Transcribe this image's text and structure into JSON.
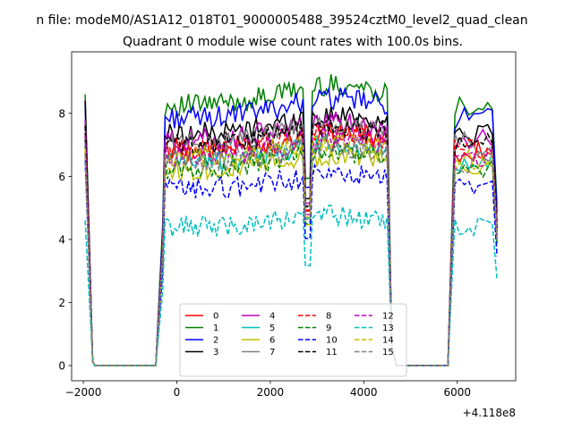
{
  "suptitle": "n file: modeM0/AS1A12_018T01_9000005488_39524cztM0_level2_quad_clean",
  "chart_data": {
    "type": "line",
    "title": "Quadrant 0 module wise count rates with 100.0s bins.",
    "xlabel": "",
    "ylabel": "",
    "x_offset_label": "+4.118e8",
    "xlim": [
      -2250,
      7250
    ],
    "ylim": [
      -0.48,
      9.95
    ],
    "xticks": [
      -2000,
      0,
      2000,
      4000,
      6000
    ],
    "xtick_labels": [
      "−2000",
      "0",
      "2000",
      "4000",
      "6000"
    ],
    "yticks": [
      0,
      2,
      4,
      6,
      8
    ],
    "yticks_labels": [
      "0",
      "2",
      "4",
      "6",
      "8"
    ],
    "grid": false,
    "legend": {
      "location": "bottom-center",
      "ncol": 4
    },
    "series": [
      {
        "name": "0",
        "color": "#ff0000",
        "style": "solid",
        "level": 6.8,
        "start": 8.4,
        "scale": 1.0
      },
      {
        "name": "1",
        "color": "#008000",
        "style": "solid",
        "level": 8.25,
        "start": 8.6,
        "scale": 1.0
      },
      {
        "name": "2",
        "color": "#0000ff",
        "style": "solid",
        "level": 7.85,
        "start": 8.3,
        "scale": 1.0
      },
      {
        "name": "3",
        "color": "#000000",
        "style": "solid",
        "level": 7.35,
        "start": 8.4,
        "scale": 1.0
      },
      {
        "name": "4",
        "color": "#bf00bf",
        "style": "solid",
        "level": 7.15,
        "start": 7.8,
        "scale": 1.0
      },
      {
        "name": "5",
        "color": "#00bfbf",
        "style": "solid",
        "level": 6.5,
        "start": 7.0,
        "scale": 1.0
      },
      {
        "name": "6",
        "color": "#bfbf00",
        "style": "solid",
        "level": 6.2,
        "start": 6.8,
        "scale": 1.0
      },
      {
        "name": "7",
        "color": "#808080",
        "style": "solid",
        "level": 7.05,
        "start": 7.4,
        "scale": 1.0
      },
      {
        "name": "8",
        "color": "#ff0000",
        "style": "dashed",
        "level": 6.85,
        "start": 7.6,
        "scale": 1.0
      },
      {
        "name": "9",
        "color": "#008000",
        "style": "dashed",
        "level": 6.25,
        "start": 7.2,
        "scale": 1.0
      },
      {
        "name": "10",
        "color": "#0000ff",
        "style": "dashed",
        "level": 5.6,
        "start": 6.5,
        "scale": 1.0
      },
      {
        "name": "11",
        "color": "#000000",
        "style": "dashed",
        "level": 7.0,
        "start": 7.6,
        "scale": 1.0
      },
      {
        "name": "12",
        "color": "#bf00bf",
        "style": "dashed",
        "level": 6.65,
        "start": 7.3,
        "scale": 1.0
      },
      {
        "name": "13",
        "color": "#00bfbf",
        "style": "dashed",
        "level": 4.4,
        "start": 4.6,
        "scale": 1.0
      },
      {
        "name": "14",
        "color": "#bfbf00",
        "style": "dashed",
        "level": 6.55,
        "start": 6.9,
        "scale": 1.0
      },
      {
        "name": "15",
        "color": "#808080",
        "style": "dashed",
        "level": 6.45,
        "start": 6.7,
        "scale": 1.0
      }
    ],
    "x_pattern": {
      "first": -1960,
      "step": 100,
      "drop_end": -1800,
      "zero_start": -1750,
      "zero_end": -400,
      "on1_start": -300,
      "on1_end": 4500,
      "dip_at": 2800,
      "off2_start": 4600,
      "off2_end": 5850,
      "on2_start": 5950,
      "on2_end": 6750,
      "last": 6850
    }
  }
}
